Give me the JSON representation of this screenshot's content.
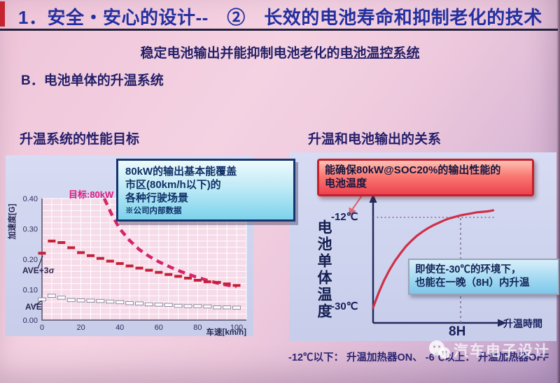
{
  "slide": {
    "title": "1．安全・安心的设计--　②　长效的电池寿命和抑制老化的技术",
    "subtitle_plain": "稳定电池输出并能抑制电池老化的",
    "subtitle_underlined": "电池温控系统",
    "section_b": "B．电池单体的升温系统",
    "bottom_note": "-12℃以下： 升温加热器ON、  -6℃以上： 升温加热器OFF",
    "watermark_text": "汽车电子设计"
  },
  "colors": {
    "title_text": "#222f9e",
    "body_text": "#231f67",
    "target_curve": "#d4246a",
    "ave3_series": "#c42038",
    "right_curve": "#cf3048",
    "red_callout_border": "#c4202a",
    "cyan_callout_border": "#16356e",
    "panel_bg": "#ccd3ee",
    "plot_bg": "#f6dbe9"
  },
  "chart_data": [
    {
      "type": "scatter",
      "title": "升温系统的性能目标",
      "xlabel": "车速[km/h]",
      "ylabel": "加速度[G]",
      "xlim": [
        0,
        105
      ],
      "ylim": [
        0,
        0.4
      ],
      "grid": "on",
      "x_tick_values": [
        0,
        20,
        40,
        60,
        80,
        100
      ],
      "x_ticks": [
        "0",
        "20",
        "40",
        "60",
        "80",
        "100"
      ],
      "y_tick_values": [
        0,
        0.1,
        0.2,
        0.3,
        0.4
      ],
      "y_ticks": [
        "0.00",
        "0.10",
        "0.20",
        "0.30",
        "0.40"
      ],
      "series": [
        {
          "name": "目标:80kW",
          "style": "dashed-curve",
          "color": "#d4246a",
          "x": [
            32,
            36,
            40,
            45,
            50,
            55,
            60,
            65,
            70,
            75,
            80,
            85,
            90,
            95,
            100
          ],
          "y": [
            0.4,
            0.345,
            0.3,
            0.262,
            0.232,
            0.21,
            0.192,
            0.177,
            0.163,
            0.151,
            0.14,
            0.131,
            0.122,
            0.115,
            0.11
          ]
        },
        {
          "name": "AVE+3σ",
          "style": "dash-markers",
          "color": "#c42038",
          "x": [
            0,
            5,
            10,
            15,
            20,
            25,
            30,
            35,
            40,
            45,
            50,
            55,
            60,
            65,
            70,
            75,
            80,
            85,
            90,
            95,
            100
          ],
          "y": [
            0.22,
            0.26,
            0.255,
            0.238,
            0.222,
            0.212,
            0.203,
            0.194,
            0.186,
            0.178,
            0.171,
            0.164,
            0.157,
            0.15,
            0.144,
            0.138,
            0.131,
            0.126,
            0.124,
            0.119,
            0.114
          ]
        },
        {
          "name": "AVE",
          "style": "dash-markers-outline",
          "color": "#ffffff",
          "x": [
            0,
            5,
            10,
            15,
            20,
            25,
            30,
            35,
            40,
            45,
            50,
            55,
            60,
            65,
            70,
            75,
            80,
            85,
            90,
            95,
            100
          ],
          "y": [
            0.068,
            0.08,
            0.074,
            0.066,
            0.065,
            0.064,
            0.063,
            0.061,
            0.059,
            0.056,
            0.055,
            0.052,
            0.051,
            0.05,
            0.047,
            0.046,
            0.046,
            0.045,
            0.042,
            0.042,
            0.041
          ]
        }
      ],
      "callout": {
        "lines": [
          "80kW的输出基本能覆盖",
          "市区(80km/h以下)的",
          "各种行驶场景"
        ],
        "note": "※公司内部数据"
      }
    },
    {
      "type": "line",
      "title": "升温和电池输出的关系",
      "xlabel": "升温時間",
      "ylabel": "电池单体温度",
      "annotations": {
        "minus12": "-12℃",
        "minus30": "-30℃",
        "x8h": "8H"
      },
      "curve": {
        "time_h": [
          0,
          0.5,
          1,
          1.5,
          2,
          2.5,
          3,
          3.5,
          4,
          4.5,
          5,
          5.5,
          6,
          6.5,
          7,
          7.5,
          8,
          8.5,
          9,
          9.5,
          10,
          10.5,
          11
        ],
        "temp_c": [
          -30.0,
          -27.1,
          -24.6,
          -22.5,
          -20.7,
          -19.2,
          -17.8,
          -16.7,
          -15.7,
          -14.9,
          -14.2,
          -13.6,
          -13.1,
          -12.6,
          -12.2,
          -11.9,
          -11.6,
          -11.4,
          -11.2,
          -11.0,
          -10.9,
          -10.8,
          -10.6
        ]
      },
      "callout_top_lines": [
        "能确保80kW@SOC20%的输出性能的",
        "电池温度"
      ],
      "callout_mid_lines": [
        "即使在-30℃的环境下，",
        "也能在一晚（8H）内升温"
      ]
    }
  ]
}
